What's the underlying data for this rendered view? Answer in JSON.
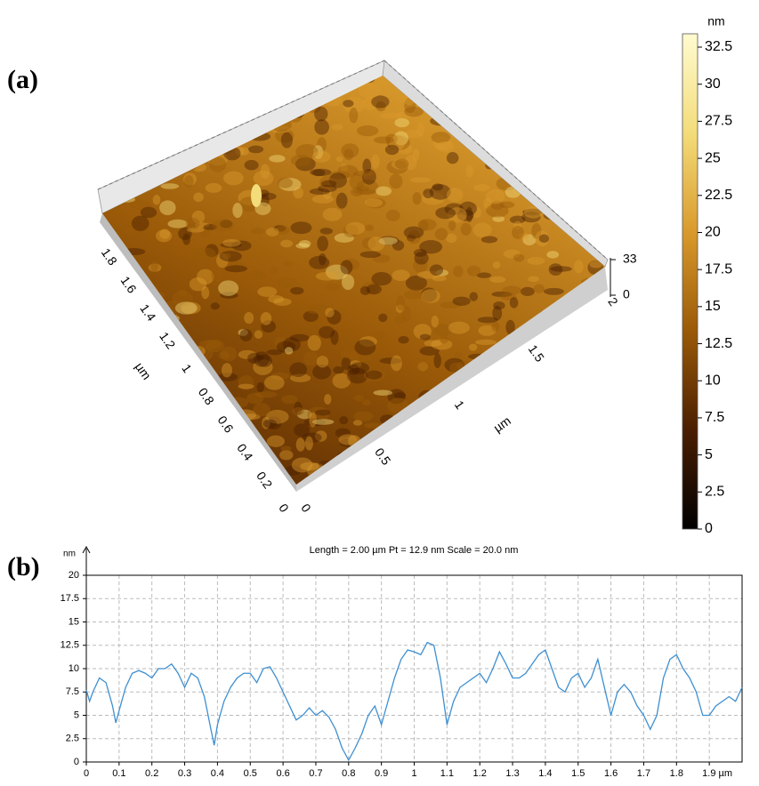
{
  "chart_data": [
    {
      "type": "surface",
      "panel_label": "(a)",
      "colorbar": {
        "unit": "nm",
        "lim": [
          0,
          33.4
        ],
        "ticks": [
          0,
          2.5,
          5,
          7.5,
          10,
          12.5,
          15,
          17.5,
          20,
          22.5,
          25,
          27.5,
          30,
          32.5
        ],
        "colormap": [
          "#000000",
          "#4a1e00",
          "#9a5a08",
          "#d99a2c",
          "#f3dc7a",
          "#fffbd0"
        ]
      },
      "yaxis": {
        "label": "µm",
        "lim": [
          0,
          2
        ],
        "ticks": [
          0,
          0.2,
          0.4,
          0.6,
          0.8,
          1,
          1.2,
          1.4,
          1.6,
          1.8
        ]
      },
      "xaxis": {
        "label": "µm",
        "lim": [
          0,
          2
        ],
        "ticks": [
          0,
          0.5,
          1,
          1.5,
          2
        ]
      },
      "zaxis": {
        "lim": [
          0,
          33
        ],
        "ticks": [
          0,
          33
        ]
      }
    },
    {
      "type": "line",
      "panel_label": "(b)",
      "title": "Length = 2.00 µm  Pt = 12.9 nm  Scale = 20.0 nm",
      "y_unit": "nm",
      "xlim": [
        0,
        2
      ],
      "ylim": [
        0,
        20
      ],
      "yticks": [
        0,
        2.5,
        5,
        7.5,
        10,
        12.5,
        15,
        17.5,
        20
      ],
      "xticks": [
        0,
        0.1,
        0.2,
        0.3,
        0.4,
        0.5,
        0.6,
        0.7,
        0.8,
        0.9,
        1,
        1.1,
        1.2,
        1.3,
        1.4,
        1.5,
        1.6,
        1.7,
        1.8,
        {
          "value": 1.9,
          "label": "1.9 µm"
        }
      ],
      "grid": true,
      "color": "#3d8fd1",
      "x": [
        0,
        0.01,
        0.02,
        0.04,
        0.06,
        0.08,
        0.09,
        0.1,
        0.12,
        0.14,
        0.16,
        0.18,
        0.2,
        0.22,
        0.24,
        0.26,
        0.28,
        0.3,
        0.32,
        0.34,
        0.36,
        0.38,
        0.39,
        0.4,
        0.42,
        0.44,
        0.46,
        0.48,
        0.5,
        0.52,
        0.54,
        0.56,
        0.58,
        0.6,
        0.62,
        0.64,
        0.66,
        0.68,
        0.7,
        0.72,
        0.74,
        0.76,
        0.78,
        0.8,
        0.82,
        0.84,
        0.86,
        0.88,
        0.9,
        0.92,
        0.94,
        0.96,
        0.98,
        1.0,
        1.02,
        1.04,
        1.06,
        1.08,
        1.1,
        1.12,
        1.14,
        1.16,
        1.18,
        1.2,
        1.22,
        1.24,
        1.26,
        1.28,
        1.3,
        1.32,
        1.34,
        1.36,
        1.38,
        1.4,
        1.42,
        1.44,
        1.46,
        1.48,
        1.5,
        1.52,
        1.54,
        1.56,
        1.58,
        1.6,
        1.62,
        1.64,
        1.66,
        1.68,
        1.7,
        1.72,
        1.74,
        1.76,
        1.78,
        1.8,
        1.82,
        1.84,
        1.86,
        1.88,
        1.9,
        1.92,
        1.94,
        1.96,
        1.98,
        2.0
      ],
      "values": [
        7.7,
        6.5,
        7.5,
        9,
        8.5,
        6,
        4.2,
        5.5,
        8,
        9.5,
        9.8,
        9.5,
        9,
        10,
        10,
        10.5,
        9.5,
        8,
        9.5,
        9,
        7,
        3.5,
        1.8,
        4,
        6.5,
        8,
        9,
        9.5,
        9.5,
        8.5,
        10,
        10.2,
        9,
        7.5,
        6,
        4.5,
        5,
        5.8,
        5,
        5.5,
        4.8,
        3.5,
        1.5,
        0.2,
        1.5,
        3,
        5,
        6,
        4,
        6.5,
        9,
        11,
        12,
        11.8,
        11.5,
        12.8,
        12.5,
        9,
        4,
        6.5,
        8,
        8.5,
        9,
        9.5,
        8.5,
        10,
        11.8,
        10.5,
        9,
        9,
        9.5,
        10.5,
        11.5,
        12,
        10,
        8,
        7.5,
        9,
        9.5,
        8,
        9,
        11,
        8,
        5,
        7.5,
        8.3,
        7.5,
        6,
        5,
        3.5,
        5,
        9,
        11,
        11.5,
        10,
        9,
        7.5,
        5,
        5,
        6,
        6.5,
        7,
        6.5,
        8
      ]
    }
  ]
}
